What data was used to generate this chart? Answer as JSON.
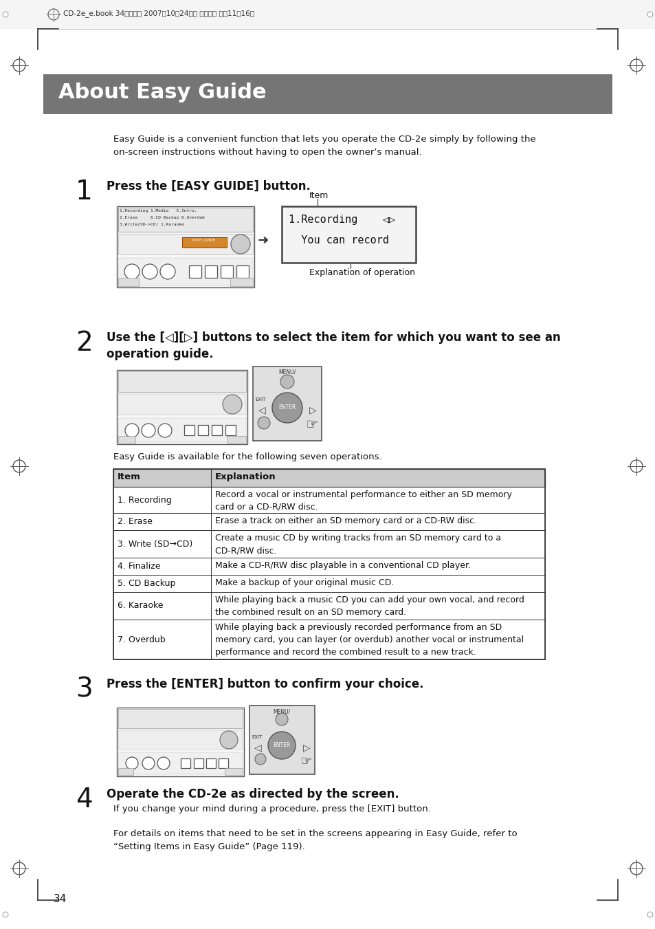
{
  "page_bg": "#ffffff",
  "header_bg": "#757575",
  "header_text": "About Easy Guide",
  "header_text_color": "#ffffff",
  "header_font_size": 22,
  "top_bar_text": "CD-2e_e.book 34ページ　　2007年10月24日　　3水曜日　　午前11時16分",
  "intro_text": "Easy Guide is a convenient function that lets you operate the CD-2e simply by following the\non-screen instructions without having to open the owner’s manual.",
  "step1_num": "1",
  "step1_text": "Press the [EASY GUIDE] button.",
  "step1_label_item": "Item",
  "step1_label_explanation": "Explanation of operation",
  "step2_num": "2",
  "step2_text": "Use the [◁][▷] buttons to select the item for which you want to see an\noperation guide.",
  "easy_guide_note": "Easy Guide is available for the following seven operations.",
  "table_header_item": "Item",
  "table_header_explanation": "Explanation",
  "table_rows": [
    [
      "1. Recording",
      "Record a vocal or instrumental performance to either an SD memory\ncard or a CD-R/RW disc."
    ],
    [
      "2. Erase",
      "Erase a track on either an SD memory card or a CD-RW disc."
    ],
    [
      "3. Write (SD→CD)",
      "Create a music CD by writing tracks from an SD memory card to a\nCD-R/RW disc."
    ],
    [
      "4. Finalize",
      "Make a CD-R/RW disc playable in a conventional CD player."
    ],
    [
      "5. CD Backup",
      "Make a backup of your original music CD."
    ],
    [
      "6. Karaoke",
      "While playing back a music CD you can add your own vocal, and record\nthe combined result on an SD memory card."
    ],
    [
      "7. Overdub",
      "While playing back a previously recorded performance from an SD\nmemory card, you can layer (or overdub) another vocal or instrumental\nperformance and record the combined result to a new track."
    ]
  ],
  "step3_num": "3",
  "step3_text": "Press the [ENTER] button to confirm your choice.",
  "step4_num": "4",
  "step4_title": "Operate the CD-2e as directed by the screen.",
  "step4_text": "If you change your mind during a procedure, press the [EXIT] button.",
  "footer_note": "For details on items that need to be set in the screens appearing in Easy Guide, refer to\n“Setting Items in Easy Guide” (Page 119).",
  "page_number": "34"
}
